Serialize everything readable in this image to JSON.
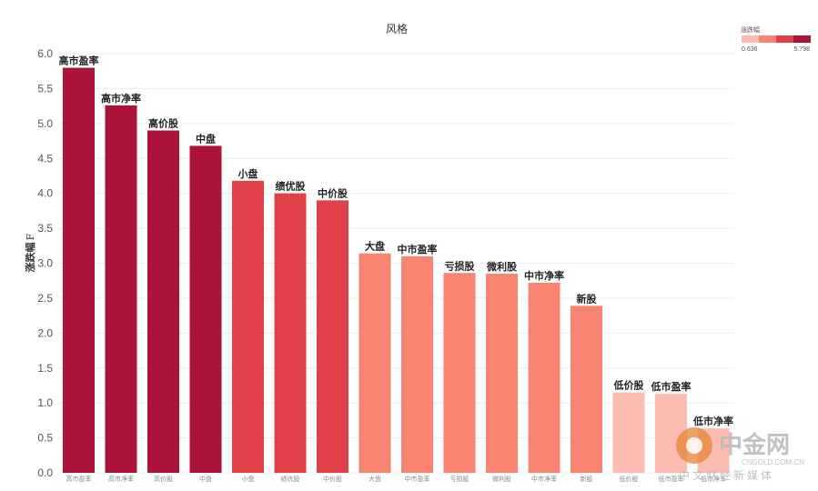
{
  "chart_data": {
    "type": "bar",
    "title": "风格",
    "ylabel": "涨跌幅",
    "ylabel_suffix": "F",
    "ylim": [
      0,
      6.0
    ],
    "yticks": [
      "0.0",
      "0.5",
      "1.0",
      "1.5",
      "2.0",
      "2.5",
      "3.0",
      "3.5",
      "4.0",
      "4.5",
      "5.0",
      "5.5",
      "6.0"
    ],
    "grid": true,
    "categories": [
      "高市盈率",
      "高市净率",
      "高价股",
      "中盘",
      "小盘",
      "绩优股",
      "中价股",
      "大盘",
      "中市盈率",
      "亏损股",
      "微利股",
      "中市净率",
      "新股",
      "低价股",
      "低市盈率",
      "低市净率"
    ],
    "values": [
      5.798,
      5.26,
      4.9,
      4.68,
      4.18,
      4.0,
      3.9,
      3.14,
      3.1,
      2.86,
      2.85,
      2.72,
      2.39,
      1.15,
      1.13,
      0.636
    ],
    "colors": [
      "#ac1338",
      "#ac1338",
      "#ac1338",
      "#ac1338",
      "#e04048",
      "#e04048",
      "#e04048",
      "#f78571",
      "#f78571",
      "#f78571",
      "#f78571",
      "#f78571",
      "#f78571",
      "#fcbdb0",
      "#fcbdb0",
      "#fcbdb0"
    ],
    "legend": {
      "title": "涨跌幅",
      "placement": "top-right",
      "min": "0.636",
      "max": "5.798",
      "swatches": [
        "#fcbdb0",
        "#f78571",
        "#e04048",
        "#ac1338"
      ]
    }
  },
  "watermark": {
    "name": "中金网",
    "url": "CNGOLD.COM.CN",
    "subtitle": "中文财经新媒体"
  }
}
